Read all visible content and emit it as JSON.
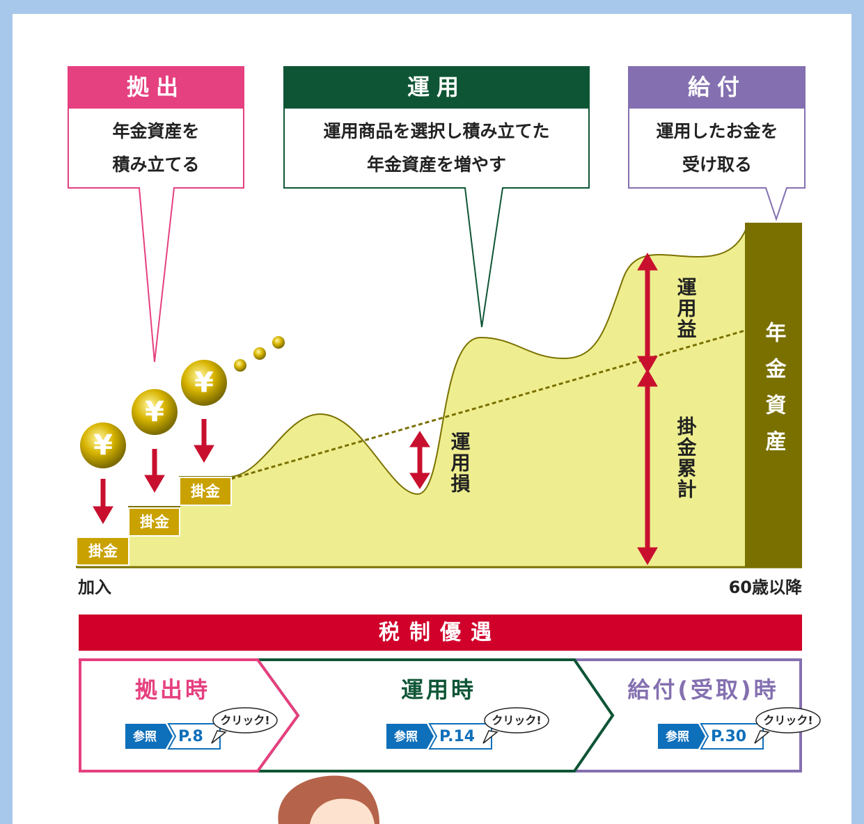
{
  "stages": [
    {
      "title": "拠出",
      "lines": [
        "年金資産を",
        "積み立てる"
      ]
    },
    {
      "title": "運用",
      "lines": [
        "運用商品を選択し積み立てた",
        "年金資産を増やす"
      ]
    },
    {
      "title": "給付",
      "lines": [
        "運用したお金を",
        "受け取る"
      ]
    }
  ],
  "coins": [
    "¥",
    "¥",
    "¥"
  ],
  "steps": [
    "掛金",
    "掛金",
    "掛金"
  ],
  "labels": {
    "loss": "運用損",
    "gain": "運用益",
    "contrib": "掛金累計",
    "assets": "年金資産"
  },
  "axis": {
    "start": "加入",
    "end": "60歳以降"
  },
  "banner": "税制優遇",
  "sections": [
    {
      "title": "拠出時",
      "ref": "参照",
      "page": "P.8",
      "click": "クリック!"
    },
    {
      "title": "運用時",
      "ref": "参照",
      "page": "P.14",
      "click": "クリック!"
    },
    {
      "title": "給付(受取)時",
      "ref": "参照",
      "page": "P.30",
      "click": "クリック!"
    }
  ]
}
